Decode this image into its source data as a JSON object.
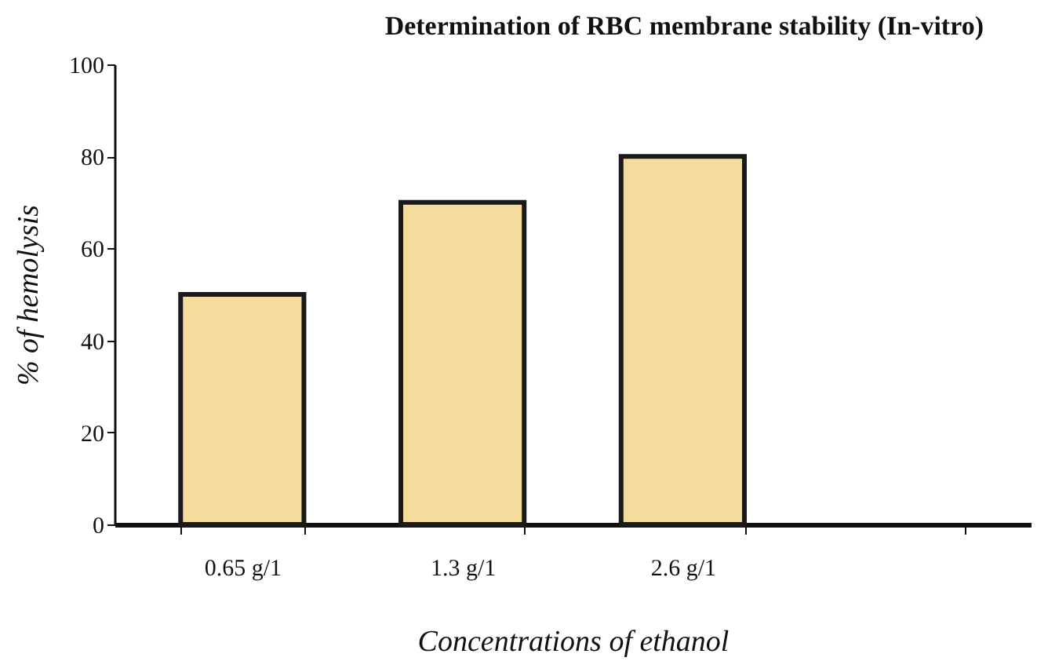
{
  "chart_data": {
    "type": "bar",
    "title": "Determination of RBC membrane stability (In-vitro)",
    "xlabel": "Concentrations of ethanol",
    "ylabel": "% of hemolysis",
    "categories": [
      "0.65 g/1",
      "1.3 g/1",
      "2.6 g/1",
      null
    ],
    "values": [
      50,
      70,
      80,
      null
    ],
    "color": "#f3dc9c",
    "ylim": [
      0,
      100
    ],
    "yticks": [
      0,
      20,
      40,
      60,
      80,
      100
    ],
    "grid": false
  }
}
